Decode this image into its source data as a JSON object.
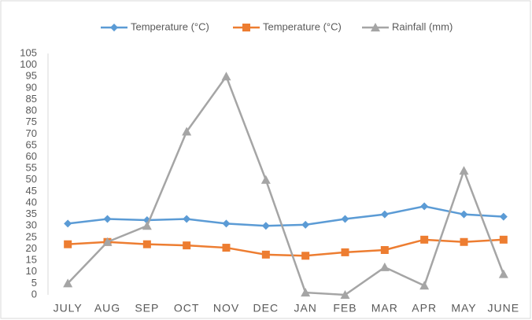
{
  "chart_data": {
    "type": "line",
    "categories": [
      "JULY",
      "AUG",
      "SEP",
      "OCT",
      "NOV",
      "DEC",
      "JAN",
      "FEB",
      "MAR",
      "APR",
      "MAY",
      "JUNE"
    ],
    "series": [
      {
        "name": "Temperature (°C)",
        "color": "#5b9bd5",
        "marker": "diamond",
        "values": [
          31,
          33,
          32.5,
          33,
          31,
          30,
          30.5,
          33,
          35,
          38.5,
          35,
          34
        ]
      },
      {
        "name": "Temperature (°C)",
        "color": "#ed7d31",
        "marker": "square",
        "values": [
          22,
          23,
          22,
          21.5,
          20.5,
          17.5,
          17,
          18.5,
          19.5,
          24,
          23,
          24
        ]
      },
      {
        "name": "Rainfall (mm)",
        "color": "#a5a5a5",
        "marker": "triangle",
        "values": [
          5,
          23,
          30,
          71,
          95,
          50,
          1,
          0,
          12,
          4,
          54,
          9
        ]
      }
    ],
    "ylim": [
      0,
      105
    ],
    "yticks": [
      0,
      5,
      10,
      15,
      20,
      25,
      30,
      35,
      40,
      45,
      50,
      55,
      60,
      65,
      70,
      75,
      80,
      85,
      90,
      95,
      100,
      105
    ],
    "legend": "top",
    "grid": false
  }
}
